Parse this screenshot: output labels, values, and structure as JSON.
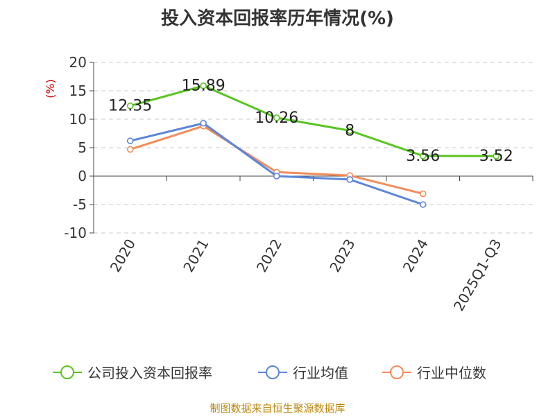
{
  "chart_data": {
    "type": "line",
    "title": "投入资本回报率历年情况(%)",
    "ylabel": "(%)",
    "xlabel": "",
    "ylim": [
      -10,
      20
    ],
    "yticks": [
      20,
      15,
      10,
      5,
      0,
      -5,
      -10
    ],
    "grid": true,
    "legend_position": "bottom",
    "categories": [
      "2020",
      "2021",
      "2022",
      "2023",
      "2024",
      "2025Q1-Q3"
    ],
    "series": [
      {
        "name": "公司投入资本回报率",
        "color": "#5ac421",
        "values": [
          12.35,
          15.89,
          10.26,
          8,
          3.56,
          3.52
        ],
        "labels": [
          "12.35",
          "15.89",
          "10.26",
          "8",
          "3.56",
          "3.52"
        ]
      },
      {
        "name": "行业均值",
        "color": "#5b85d9",
        "values": [
          6.2,
          9.3,
          0,
          -0.6,
          -5,
          null
        ]
      },
      {
        "name": "行业中位数",
        "color": "#f48c5b",
        "values": [
          4.7,
          8.8,
          0.7,
          0.1,
          -3.1,
          null
        ]
      }
    ]
  },
  "source": "制图数据来自恒生聚源数据库"
}
